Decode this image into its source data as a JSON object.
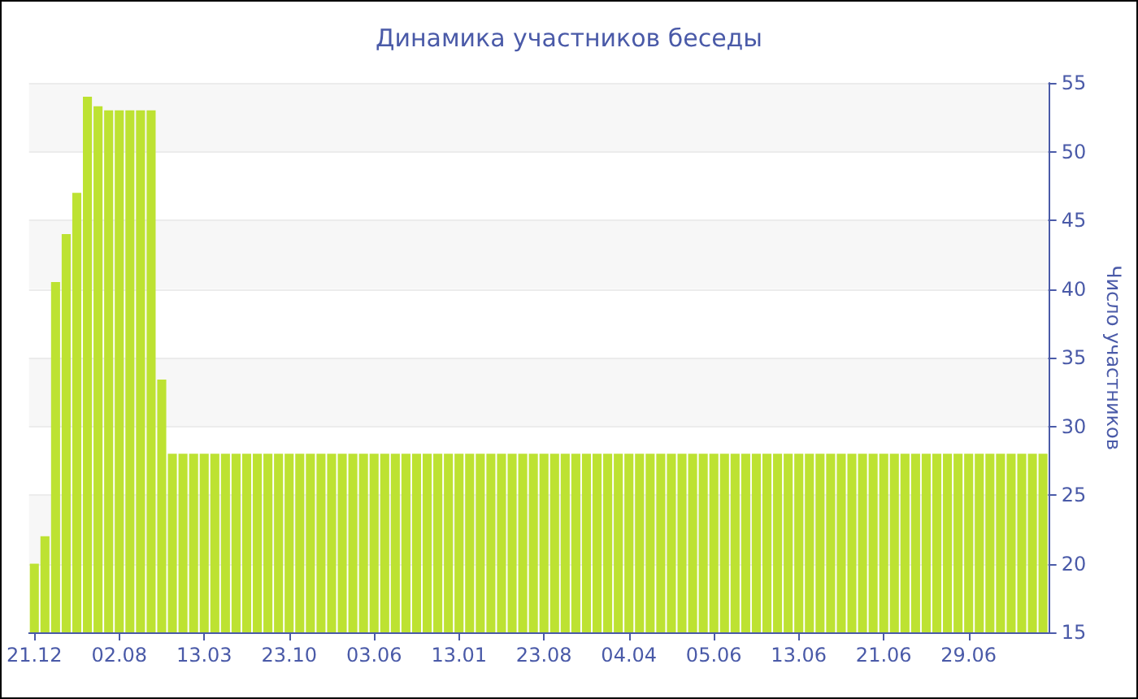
{
  "chart_data": {
    "type": "bar",
    "title": "Динамика участников беседы",
    "ylabel": "Число участников",
    "categories": [
      "21.12",
      null,
      null,
      null,
      null,
      null,
      null,
      null,
      "02.08",
      null,
      null,
      null,
      null,
      null,
      null,
      null,
      "13.03",
      null,
      null,
      null,
      null,
      null,
      null,
      null,
      "23.10",
      null,
      null,
      null,
      null,
      null,
      null,
      null,
      "03.06",
      null,
      null,
      null,
      null,
      null,
      null,
      null,
      "13.01",
      null,
      null,
      null,
      null,
      null,
      null,
      null,
      "23.08",
      null,
      null,
      null,
      null,
      null,
      null,
      null,
      "04.04",
      null,
      null,
      null,
      null,
      null,
      null,
      null,
      "05.06",
      null,
      null,
      null,
      null,
      null,
      null,
      null,
      "13.06",
      null,
      null,
      null,
      null,
      null,
      null,
      null,
      "21.06",
      null,
      null,
      null,
      null,
      null,
      null,
      null,
      "29.06",
      null,
      null,
      null,
      null,
      null,
      null,
      null
    ],
    "values": [
      20,
      22,
      40.5,
      44,
      47,
      54,
      53.3,
      53,
      53,
      53,
      53,
      53,
      33.4,
      28,
      28,
      28,
      28,
      28,
      28,
      28,
      28,
      28,
      28,
      28,
      28,
      28,
      28,
      28,
      28,
      28,
      28,
      28,
      28,
      28,
      28,
      28,
      28,
      28,
      28,
      28,
      28,
      28,
      28,
      28,
      28,
      28,
      28,
      28,
      28,
      28,
      28,
      28,
      28,
      28,
      28,
      28,
      28,
      28,
      28,
      28,
      28,
      28,
      28,
      28,
      28,
      28,
      28,
      28,
      28,
      28,
      28,
      28,
      28,
      28,
      28,
      28,
      28,
      28,
      28,
      28,
      28,
      28,
      28,
      28,
      28,
      28,
      28,
      28,
      28,
      28,
      28,
      28,
      28,
      28,
      28,
      28
    ],
    "color": "#bde232",
    "ylim": [
      15,
      55
    ],
    "yticks": [
      15,
      20,
      25,
      30,
      35,
      40,
      45,
      50,
      55
    ],
    "grid": "y"
  }
}
